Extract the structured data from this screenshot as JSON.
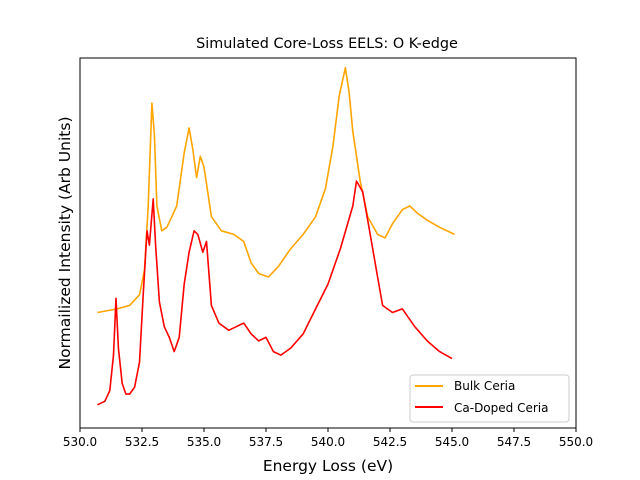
{
  "chart_data": {
    "type": "line",
    "title": "Simulated Core-Loss EELS: O K-edge",
    "xlabel": "Energy Loss (eV)",
    "ylabel": "Normailized Intensity (Arb Units)",
    "xlim": [
      530.0,
      550.0
    ],
    "ylim": [
      0,
      1
    ],
    "yticks_visible": false,
    "x_ticks": [
      "530.0",
      "532.5",
      "535.0",
      "537.5",
      "540.0",
      "542.5",
      "545.0",
      "547.5",
      "550.0"
    ],
    "legend": {
      "placement": "lower right"
    },
    "series": [
      {
        "name": "Bulk Ceria",
        "color": "#ffa500",
        "x": [
          530.7,
          531.5,
          532.0,
          532.4,
          532.6,
          532.75,
          532.9,
          533.0,
          533.1,
          533.3,
          533.5,
          533.7,
          533.9,
          534.1,
          534.2,
          534.4,
          534.55,
          534.7,
          534.85,
          535.0,
          535.3,
          535.7,
          536.2,
          536.6,
          536.9,
          537.2,
          537.6,
          538.0,
          538.5,
          539.0,
          539.5,
          539.9,
          540.2,
          540.45,
          540.7,
          540.85,
          541.0,
          541.3,
          541.6,
          542.0,
          542.3,
          542.6,
          543.0,
          543.3,
          543.6,
          544.0,
          544.5,
          545.1
        ],
        "values": [
          0.3,
          0.31,
          0.32,
          0.35,
          0.42,
          0.6,
          0.89,
          0.8,
          0.6,
          0.53,
          0.54,
          0.57,
          0.6,
          0.7,
          0.75,
          0.82,
          0.76,
          0.68,
          0.74,
          0.71,
          0.57,
          0.53,
          0.52,
          0.5,
          0.44,
          0.41,
          0.4,
          0.43,
          0.48,
          0.52,
          0.57,
          0.65,
          0.77,
          0.91,
          0.99,
          0.92,
          0.81,
          0.67,
          0.57,
          0.52,
          0.51,
          0.55,
          0.59,
          0.6,
          0.58,
          0.56,
          0.54,
          0.52
        ]
      },
      {
        "name": "Ca-Doped Ceria",
        "color": "#ff0000",
        "x": [
          530.7,
          531.0,
          531.2,
          531.35,
          531.45,
          531.55,
          531.7,
          531.85,
          532.0,
          532.2,
          532.4,
          532.55,
          532.7,
          532.8,
          532.95,
          533.05,
          533.2,
          533.4,
          533.6,
          533.8,
          534.0,
          534.2,
          534.4,
          534.6,
          534.75,
          534.95,
          535.1,
          535.3,
          535.6,
          536.0,
          536.3,
          536.6,
          536.9,
          537.2,
          537.5,
          537.8,
          538.1,
          538.5,
          539.0,
          539.5,
          540.0,
          540.5,
          541.0,
          541.15,
          541.4,
          541.7,
          542.0,
          542.2,
          542.6,
          543.0,
          543.5,
          544.0,
          544.5,
          545.0
        ],
        "values": [
          0.04,
          0.05,
          0.08,
          0.18,
          0.34,
          0.2,
          0.1,
          0.07,
          0.07,
          0.09,
          0.16,
          0.35,
          0.53,
          0.49,
          0.62,
          0.49,
          0.33,
          0.26,
          0.23,
          0.19,
          0.23,
          0.38,
          0.47,
          0.53,
          0.52,
          0.47,
          0.5,
          0.32,
          0.27,
          0.25,
          0.26,
          0.27,
          0.24,
          0.22,
          0.23,
          0.19,
          0.18,
          0.2,
          0.24,
          0.31,
          0.38,
          0.48,
          0.6,
          0.67,
          0.64,
          0.52,
          0.4,
          0.32,
          0.3,
          0.31,
          0.26,
          0.22,
          0.19,
          0.17
        ]
      }
    ]
  }
}
